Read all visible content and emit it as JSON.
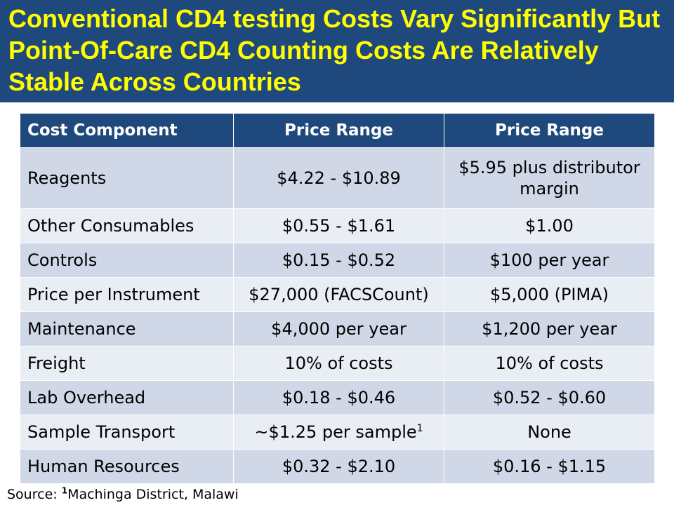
{
  "title": "Conventional CD4 testing Costs Vary Significantly But Point-Of-Care CD4 Counting Costs Are Relatively Stable Across Countries",
  "table": {
    "headers": [
      "Cost Component",
      "Price Range",
      "Price Range"
    ],
    "rows": [
      {
        "component": "Reagents",
        "conventional": "$4.22 - $10.89",
        "poc": "$5.95 plus distributor margin"
      },
      {
        "component": "Other Consumables",
        "conventional": "$0.55 - $1.61",
        "poc": "$1.00"
      },
      {
        "component": "Controls",
        "conventional": "$0.15 - $0.52",
        "poc": "$100 per year"
      },
      {
        "component": "Price per Instrument",
        "conventional": "$27,000 (FACSCount)",
        "poc": "$5,000 (PIMA)"
      },
      {
        "component": "Maintenance",
        "conventional": "$4,000 per year",
        "poc": "$1,200 per year"
      },
      {
        "component": "Freight",
        "conventional": "10% of costs",
        "poc": "10% of costs"
      },
      {
        "component": "Lab Overhead",
        "conventional": "$0.18 - $0.46",
        "poc": "$0.52 - $0.60"
      },
      {
        "component": "Sample Transport",
        "conventional": "~$1.25 per sample",
        "conventional_footnote": "1",
        "poc": "None"
      },
      {
        "component": "Human Resources",
        "conventional": "$0.32 - $2.10",
        "poc": "$0.16 - $1.15"
      }
    ]
  },
  "source": {
    "prefix": "Source: ",
    "footnote_mark": "1",
    "text": "Machinga District, Malawi"
  },
  "colors": {
    "title_background": "#1f497d",
    "title_text": "#ffff00",
    "header_background": "#1f497d",
    "row_dark": "#d0d8e8",
    "row_light": "#e9edf4"
  }
}
